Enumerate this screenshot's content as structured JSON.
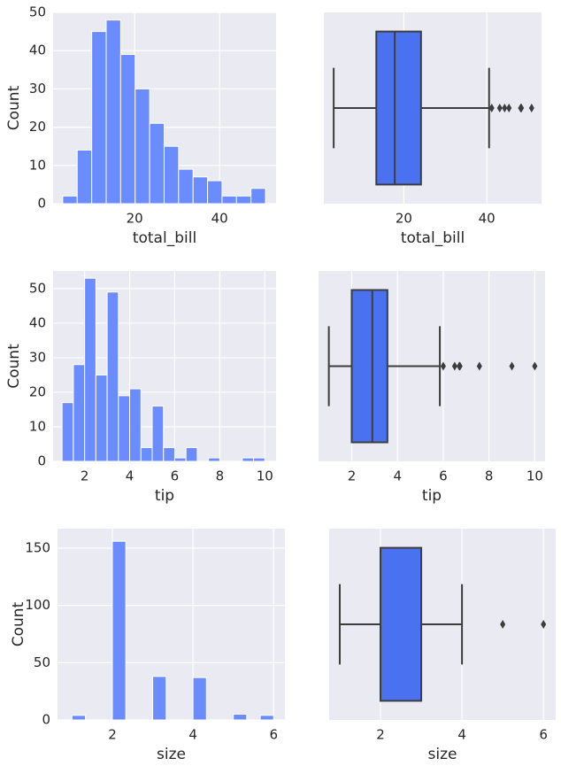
{
  "chart_data": [
    {
      "type": "histogram",
      "xlabel": "total_bill",
      "ylabel": "Count",
      "color": "#6a8cff",
      "bins": [
        3.07,
        6.48,
        9.89,
        13.3,
        16.71,
        20.12,
        23.53,
        26.94,
        30.35,
        33.76,
        37.17,
        40.58,
        43.99,
        47.4,
        50.81
      ],
      "counts": [
        2,
        14,
        45,
        48,
        39,
        30,
        21,
        15,
        9,
        7,
        6,
        2,
        2,
        4
      ],
      "xlim": [
        0.8,
        53.3
      ],
      "xticks": [
        20,
        40
      ],
      "ylim": [
        0,
        50
      ],
      "yticks": [
        0,
        10,
        20,
        30,
        40,
        50
      ],
      "grid": true
    },
    {
      "type": "box",
      "xlabel": "total_bill",
      "color": "#4a72f0",
      "box": {
        "min": 3.07,
        "q1": 13.35,
        "median": 17.8,
        "q3": 24.13,
        "max": 40.55,
        "fliers": [
          41.19,
          43.11,
          44.3,
          45.35,
          48.17,
          48.27,
          48.33,
          50.81
        ]
      },
      "xlim": [
        0.7,
        53.2
      ],
      "xticks": [
        20,
        40
      ],
      "grid": true
    },
    {
      "type": "histogram",
      "xlabel": "tip",
      "ylabel": "Count",
      "color": "#6a8cff",
      "bins": [
        1,
        1.5,
        2,
        2.5,
        3,
        3.5,
        4,
        4.5,
        5,
        5.5,
        6,
        6.5,
        7,
        7.5,
        8,
        8.5,
        9,
        9.5,
        10
      ],
      "counts": [
        17,
        28,
        53,
        25,
        49,
        19,
        21,
        4,
        16,
        4,
        1,
        4,
        0,
        1,
        0,
        0,
        1,
        1
      ],
      "xlim": [
        0.6,
        10.5
      ],
      "xticks": [
        2,
        4,
        6,
        8,
        10
      ],
      "ylim": [
        0,
        55.1
      ],
      "yticks": [
        0,
        10,
        20,
        30,
        40,
        50
      ],
      "grid": true
    },
    {
      "type": "box",
      "xlabel": "tip",
      "color": "#4a72f0",
      "box": {
        "min": 1.0,
        "q1": 2.0,
        "median": 2.9,
        "q3": 3.56,
        "max": 5.85,
        "fliers": [
          6.0,
          6.5,
          6.7,
          6.73,
          7.58,
          9.0,
          10.0
        ]
      },
      "xlim": [
        0.55,
        10.45
      ],
      "xticks": [
        2,
        4,
        6,
        8,
        10
      ],
      "grid": true
    },
    {
      "type": "histogram",
      "xlabel": "size",
      "ylabel": "Count",
      "color": "#6a8cff",
      "bins": [
        1,
        1.3333,
        1.6667,
        2,
        2.3333,
        2.6667,
        3,
        3.3333,
        3.6667,
        4,
        4.3333,
        4.6667,
        5,
        5.3333,
        5.6667,
        6
      ],
      "counts": [
        4,
        0,
        0,
        156,
        0,
        0,
        38,
        0,
        0,
        37,
        0,
        0,
        5,
        0,
        4
      ],
      "xlim": [
        0.64,
        6.28
      ],
      "xticks": [
        2,
        4,
        6
      ],
      "ylim": [
        0,
        167
      ],
      "yticks": [
        0,
        50,
        100,
        150
      ],
      "grid": true
    },
    {
      "type": "box",
      "xlabel": "size",
      "color": "#4a72f0",
      "box": {
        "min": 1,
        "q1": 2,
        "median": 2,
        "q3": 3,
        "max": 4,
        "fliers": [
          5,
          6
        ]
      },
      "xlim": [
        0.74,
        6.3
      ],
      "xticks": [
        2,
        4,
        6
      ],
      "grid": true
    }
  ]
}
